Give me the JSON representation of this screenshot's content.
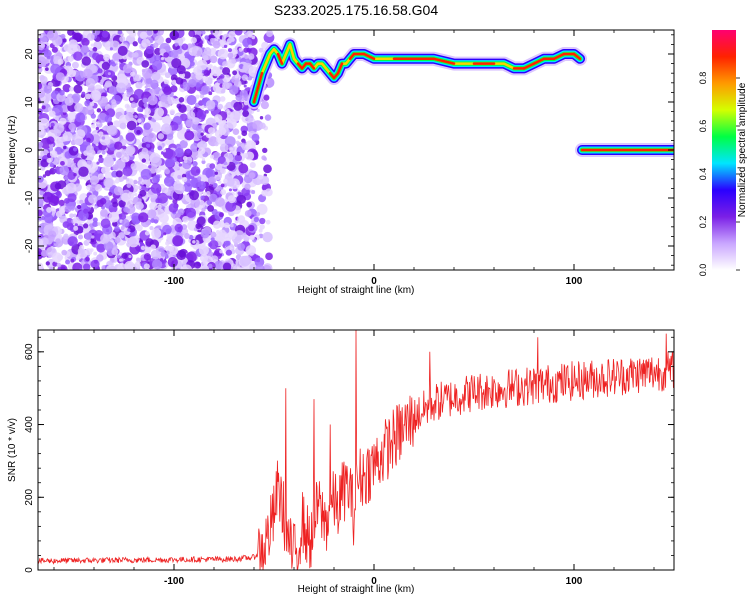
{
  "title": "S233.2025.175.16.58.G04",
  "chart_data": [
    {
      "type": "heatmap",
      "xlabel": "Height of straight line (km)",
      "ylabel": "Frequency (Hz)",
      "xlim": [
        -168,
        150
      ],
      "ylim": [
        -25,
        25
      ],
      "xticks": [
        -100,
        0,
        100
      ],
      "yticks": [
        -20,
        -10,
        0,
        10,
        20
      ],
      "colorbar": {
        "label": "Normalized spectral amplitude",
        "range": [
          0,
          1
        ],
        "ticks": [
          "0.0",
          "0.2",
          "0.4",
          "0.6",
          "0.8"
        ],
        "colors": [
          "#ffffff",
          "#c9a6ff",
          "#7b1fe6",
          "#2a00ff",
          "#00e5ff",
          "#00ff44",
          "#d4ff00",
          "#ff9a00",
          "#ff2200",
          "#ff0070"
        ]
      },
      "noise_region_x": [
        -168,
        -60
      ],
      "tracks": [
        {
          "x": [
            -60,
            -58,
            -56,
            -54,
            -52,
            -50,
            -48,
            -46,
            -44,
            -42,
            -40,
            -38,
            -36,
            -34,
            -32,
            -30,
            -28,
            -26,
            -24,
            -22,
            -20,
            -18,
            -16,
            -14,
            -12,
            -10,
            -5,
            0,
            10,
            20,
            30,
            40,
            50,
            60,
            65,
            70,
            75,
            80,
            85,
            90,
            95,
            100,
            103
          ],
          "y": [
            10,
            13,
            16,
            18,
            20,
            21,
            20,
            18,
            20,
            22,
            19,
            18,
            17,
            18,
            18,
            17,
            18,
            18,
            17,
            16,
            15,
            16,
            18,
            18,
            19,
            20,
            20,
            19,
            19,
            19,
            19,
            18,
            18,
            18,
            18,
            17,
            17,
            18,
            19,
            19,
            20,
            20,
            19
          ]
        },
        {
          "x": [
            104,
            150
          ],
          "y": [
            0,
            0
          ]
        }
      ]
    },
    {
      "type": "line",
      "xlabel": "Height of straight line (km)",
      "ylabel": "SNR (10 * v/v)",
      "xlim": [
        -168,
        150
      ],
      "ylim": [
        0,
        660
      ],
      "xticks": [
        -100,
        0,
        100
      ],
      "yticks": [
        0,
        200,
        400,
        600
      ],
      "color": "#ee2222",
      "x_step": 0.3,
      "envelope": {
        "x": [
          -168,
          -70,
          -60,
          -55,
          -50,
          -48,
          -46,
          -44,
          -42,
          -40,
          -38,
          -36,
          -34,
          -32,
          -30,
          -28,
          -26,
          -24,
          -22,
          -20,
          -18,
          -16,
          -14,
          -12,
          -10,
          -8,
          -5,
          0,
          10,
          20,
          30,
          50,
          100,
          150
        ],
        "y": [
          25,
          30,
          35,
          60,
          150,
          230,
          180,
          120,
          60,
          40,
          60,
          140,
          100,
          80,
          120,
          180,
          150,
          130,
          160,
          190,
          170,
          210,
          230,
          220,
          150,
          250,
          260,
          290,
          360,
          420,
          460,
          490,
          520,
          550
        ]
      },
      "noise_amplitude": [
        8,
        90
      ],
      "peaks": [
        {
          "x": -44,
          "y": 500
        },
        {
          "x": -30,
          "y": 470
        },
        {
          "x": -22,
          "y": 400
        },
        {
          "x": -9,
          "y": 660
        },
        {
          "x": 28,
          "y": 600
        },
        {
          "x": 82,
          "y": 640
        },
        {
          "x": 146,
          "y": 650
        }
      ]
    }
  ]
}
